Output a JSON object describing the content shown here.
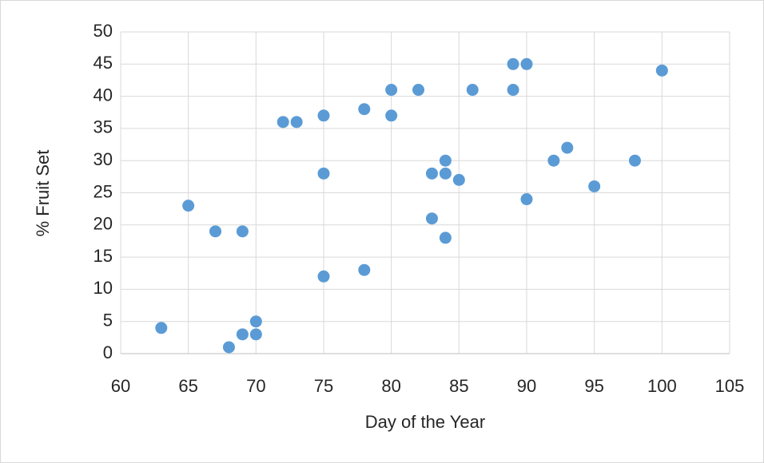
{
  "chart_data": {
    "type": "scatter",
    "x_label": "Day of the Year",
    "y_label": "% Fruit Set",
    "x": [
      63,
      65,
      67,
      68,
      69,
      69,
      70,
      70,
      72,
      73,
      75,
      75,
      75,
      78,
      78,
      80,
      80,
      82,
      83,
      83,
      84,
      84,
      84,
      85,
      86,
      89,
      89,
      90,
      90,
      92,
      93,
      95,
      98,
      100
    ],
    "values": [
      4,
      23,
      19,
      1,
      19,
      3,
      5,
      3,
      36,
      36,
      37,
      28,
      12,
      38,
      13,
      41,
      37,
      41,
      28,
      21,
      30,
      28,
      18,
      27,
      41,
      45,
      41,
      45,
      24,
      30,
      32,
      26,
      30,
      44
    ],
    "color": "#5b9bd5",
    "xlim": [
      60,
      105
    ],
    "xticks": [
      60,
      65,
      70,
      75,
      80,
      85,
      90,
      95,
      100,
      105
    ],
    "ylim": [
      0,
      50
    ],
    "yticks": [
      0,
      5,
      10,
      15,
      20,
      25,
      30,
      35,
      40,
      45,
      50
    ],
    "grid": true
  }
}
